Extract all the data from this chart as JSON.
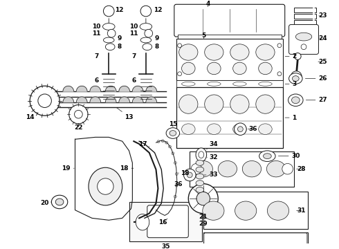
{
  "bg": "#ffffff",
  "lc": "#1a1a1a",
  "tc": "#000000",
  "fs": 6.5,
  "figw": 4.9,
  "figh": 3.6,
  "dpi": 100
}
